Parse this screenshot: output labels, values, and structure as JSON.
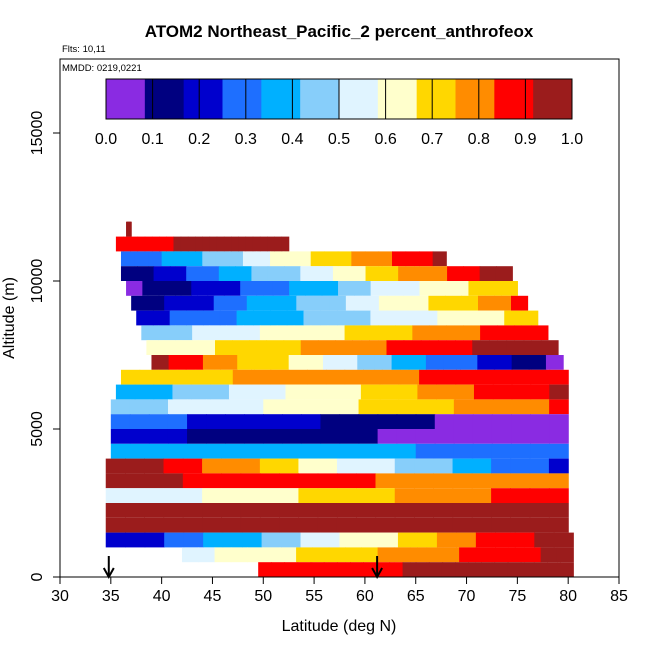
{
  "chart_data": {
    "type": "heatmap",
    "title": "ATOM2 Northeast_Pacific_2 percent_anthrofeox",
    "flights_label": "Flts: 10,11",
    "date_label": "MMDD: 0219,0221",
    "xlabel": "Latitude (deg N)",
    "ylabel": "Altitude (m)",
    "xlim": [
      30,
      85
    ],
    "ylim": [
      0,
      17500
    ],
    "x_ticks": [
      "30",
      "35",
      "40",
      "45",
      "50",
      "55",
      "60",
      "65",
      "70",
      "75",
      "80",
      "85"
    ],
    "y_ticks": [
      "0",
      "5000",
      "10000",
      "15000"
    ],
    "colorbar": {
      "range": [
        0,
        1
      ],
      "tick_labels": [
        "0.0",
        "0.1",
        "0.2",
        "0.3",
        "0.4",
        "0.5",
        "0.6",
        "0.7",
        "0.8",
        "0.9",
        "1.0"
      ],
      "colors": [
        "#8a2be2",
        "#000080",
        "#0000cd",
        "#1e6fff",
        "#00b0ff",
        "#87cefa",
        "#e0f4ff",
        "#ffffcc",
        "#ffd700",
        "#ff8c00",
        "#ff0000",
        "#9b1c1c"
      ]
    },
    "arrows_at_latitude": [
      34.8,
      61.2
    ],
    "bands": [
      {
        "y0": 11500,
        "y1": 12000,
        "x0": 36.5,
        "x1": 37.0,
        "v0": 1.0,
        "v1": 1.0
      },
      {
        "y0": 11000,
        "y1": 11500,
        "x0": 35.5,
        "x1": 52.5,
        "v0": 0.9,
        "v1": 0.95
      },
      {
        "y0": 10500,
        "y1": 11000,
        "x0": 36.0,
        "x1": 68.0,
        "v0": 0.25,
        "v1": 0.95
      },
      {
        "y0": 10000,
        "y1": 10500,
        "x0": 36.0,
        "x1": 74.5,
        "v0": 0.1,
        "v1": 1.0
      },
      {
        "y0": 9500,
        "y1": 10000,
        "x0": 36.5,
        "x1": 75.0,
        "v0": 0.05,
        "v1": 0.75
      },
      {
        "y0": 9000,
        "y1": 9500,
        "x0": 37.0,
        "x1": 76.0,
        "v0": 0.1,
        "v1": 0.85
      },
      {
        "y0": 8500,
        "y1": 9000,
        "x0": 37.5,
        "x1": 77.0,
        "v0": 0.2,
        "v1": 0.7
      },
      {
        "y0": 8000,
        "y1": 8500,
        "x0": 38.0,
        "x1": 78.0,
        "v0": 0.45,
        "v1": 0.9
      },
      {
        "y0": 7500,
        "y1": 8000,
        "x0": 38.5,
        "x1": 79.0,
        "v0": 0.6,
        "v1": 1.0
      },
      {
        "y0": 7000,
        "y1": 7500,
        "x0": 39.0,
        "x1": 79.5,
        "v0": 0.95,
        "v1": 0.05
      },
      {
        "y0": 6500,
        "y1": 7000,
        "x0": 36.0,
        "x1": 80.0,
        "v0": 0.7,
        "v1": 0.9
      },
      {
        "y0": 6000,
        "y1": 6500,
        "x0": 35.5,
        "x1": 80.0,
        "v0": 0.35,
        "v1": 0.95
      },
      {
        "y0": 5500,
        "y1": 6000,
        "x0": 35.0,
        "x1": 80.0,
        "v0": 0.45,
        "v1": 0.85
      },
      {
        "y0": 5000,
        "y1": 5500,
        "x0": 35.0,
        "x1": 80.0,
        "v0": 0.3,
        "v1": 0.0
      },
      {
        "y0": 4500,
        "y1": 5000,
        "x0": 35.0,
        "x1": 80.0,
        "v0": 0.2,
        "v1": 0.0
      },
      {
        "y0": 4000,
        "y1": 4500,
        "x0": 35.0,
        "x1": 80.0,
        "v0": 0.4,
        "v1": 0.3
      },
      {
        "y0": 3500,
        "y1": 4000,
        "x0": 34.5,
        "x1": 80.0,
        "v0": 1.0,
        "v1": 0.2
      },
      {
        "y0": 3000,
        "y1": 3500,
        "x0": 34.5,
        "x1": 80.0,
        "v0": 0.95,
        "v1": 0.75
      },
      {
        "y0": 2500,
        "y1": 3000,
        "x0": 34.5,
        "x1": 80.0,
        "v0": 0.5,
        "v1": 0.9
      },
      {
        "y0": 2000,
        "y1": 2500,
        "x0": 34.5,
        "x1": 80.0,
        "v0": 0.95,
        "v1": 1.0
      },
      {
        "y0": 1500,
        "y1": 2000,
        "x0": 34.5,
        "x1": 80.0,
        "v0": 1.0,
        "v1": 0.95
      },
      {
        "y0": 1000,
        "y1": 1500,
        "x0": 34.5,
        "x1": 80.5,
        "v0": 0.15,
        "v1": 1.0
      },
      {
        "y0": 500,
        "y1": 1000,
        "x0": 42.0,
        "x1": 80.5,
        "v0": 0.55,
        "v1": 0.95
      },
      {
        "y0": 0,
        "y1": 500,
        "x0": 49.5,
        "x1": 80.5,
        "v0": 0.85,
        "v1": 1.0
      }
    ]
  }
}
